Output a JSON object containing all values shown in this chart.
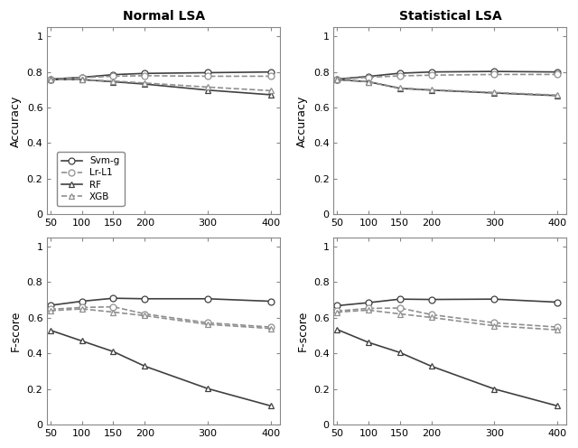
{
  "x": [
    50,
    100,
    150,
    200,
    300,
    400
  ],
  "titles": [
    "Normal LSA",
    "Statistical LSA"
  ],
  "ylabels": [
    "Accuracy",
    "F-score"
  ],
  "legend_labels": [
    "Svm-g",
    "Lr-L1",
    "RF",
    "XGB"
  ],
  "normal_lsa_accuracy": {
    "svm_g": [
      0.76,
      0.77,
      0.785,
      0.792,
      0.796,
      0.8
    ],
    "lr_l1": [
      0.758,
      0.768,
      0.776,
      0.779,
      0.776,
      0.776
    ],
    "rf": [
      0.757,
      0.757,
      0.745,
      0.732,
      0.698,
      0.672
    ],
    "xgb": [
      0.757,
      0.757,
      0.749,
      0.738,
      0.715,
      0.695
    ]
  },
  "statistical_lsa_accuracy": {
    "svm_g": [
      0.76,
      0.775,
      0.793,
      0.8,
      0.803,
      0.8
    ],
    "lr_l1": [
      0.758,
      0.77,
      0.778,
      0.782,
      0.786,
      0.786
    ],
    "rf": [
      0.757,
      0.745,
      0.708,
      0.698,
      0.682,
      0.667
    ],
    "xgb": [
      0.757,
      0.745,
      0.71,
      0.7,
      0.685,
      0.67
    ]
  },
  "normal_lsa_fscore": {
    "svm_g": [
      0.67,
      0.693,
      0.71,
      0.707,
      0.707,
      0.693
    ],
    "lr_l1": [
      0.648,
      0.658,
      0.662,
      0.622,
      0.572,
      0.548
    ],
    "rf": [
      0.53,
      0.47,
      0.41,
      0.328,
      0.202,
      0.105
    ],
    "xgb": [
      0.64,
      0.65,
      0.632,
      0.612,
      0.563,
      0.54
    ]
  },
  "statistical_lsa_fscore": {
    "svm_g": [
      0.668,
      0.685,
      0.705,
      0.703,
      0.705,
      0.688
    ],
    "lr_l1": [
      0.638,
      0.653,
      0.655,
      0.618,
      0.572,
      0.548
    ],
    "rf": [
      0.535,
      0.462,
      0.405,
      0.328,
      0.2,
      0.105
    ],
    "xgb": [
      0.632,
      0.643,
      0.622,
      0.602,
      0.555,
      0.532
    ]
  },
  "color_svm": "#404040",
  "color_lr": "#909090",
  "color_rf": "#404040",
  "color_xgb": "#909090",
  "ls_svm": "-",
  "ls_lr": "--",
  "ls_rf": "-",
  "ls_xgb": "--",
  "marker_circle": "o",
  "marker_triangle": "^",
  "markersize": 5,
  "linewidth": 1.2
}
